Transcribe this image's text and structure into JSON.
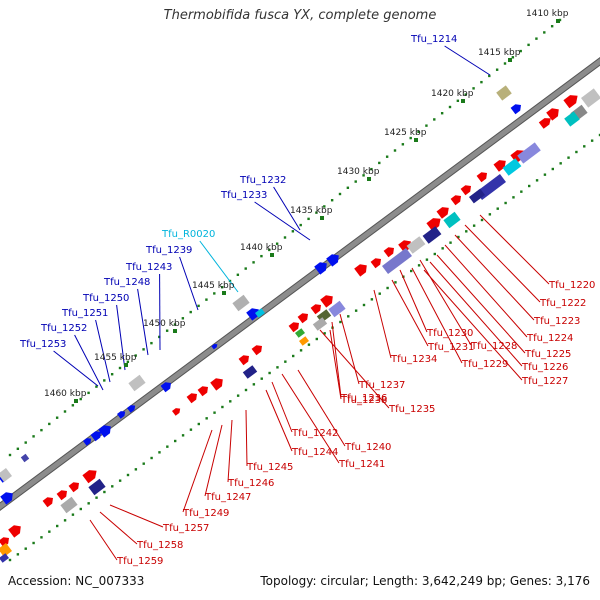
{
  "title": "Thermobifida fusca YX, complete genome",
  "footer": {
    "accession": "Accession: NC_007333",
    "summary": "Topology: circular; Length: 3,642,249 bp; Genes: 3,176"
  },
  "colors": {
    "backbone": "#8c8c8c",
    "tick_dots": "#1a7a1a",
    "forward_gene": "#ee0000",
    "reverse_gene": "#0010ee",
    "label_forward": "#c80000",
    "label_reverse": "#0000b4",
    "label_rna": "#00b4dc"
  },
  "ticks": [
    "1410 kbp",
    "1415 kbp",
    "1420 kbp",
    "1425 kbp",
    "1430 kbp",
    "1435 kbp",
    "1440 kbp",
    "1445 kbp",
    "1450 kbp",
    "1455 kbp",
    "1460 kbp"
  ],
  "reverse_labels": [
    "Tfu_1214",
    "Tfu_1232",
    "Tfu_1233",
    "Tfu_R0020",
    "Tfu_1239",
    "Tfu_1243",
    "Tfu_1248",
    "Tfu_1250",
    "Tfu_1251",
    "Tfu_1252",
    "Tfu_1253"
  ],
  "forward_labels": [
    "Tfu_1220",
    "Tfu_1222",
    "Tfu_1223",
    "Tfu_1224",
    "Tfu_1225",
    "Tfu_1226",
    "Tfu_1227",
    "Tfu_1228",
    "Tfu_1229",
    "Tfu_1230",
    "Tfu_1231",
    "Tfu_1234",
    "Tfu_1235",
    "Tfu_1236",
    "Tfu_1237",
    "Tfu_1238",
    "Tfu_1240",
    "Tfu_1241",
    "Tfu_1242",
    "Tfu_1244",
    "Tfu_1245",
    "Tfu_1246",
    "Tfu_1247",
    "Tfu_1249",
    "Tfu_1257",
    "Tfu_1258",
    "Tfu_1259"
  ]
}
